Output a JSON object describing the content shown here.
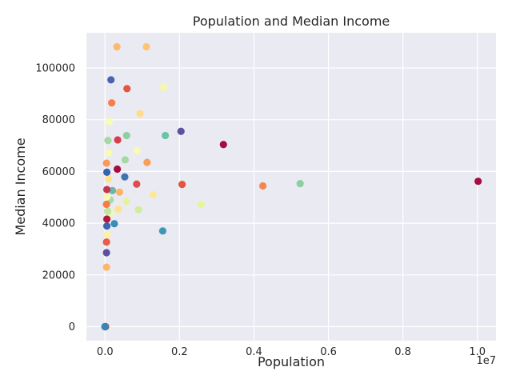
{
  "chart_data": {
    "type": "scatter",
    "title": "Population and Median Income",
    "xlabel": "Population",
    "ylabel": "Median Income",
    "x_offset_text": "1e7",
    "xlim": [
      -500000,
      10500000
    ],
    "ylim": [
      -5400,
      113600
    ],
    "x_ticks": [
      0,
      2000000,
      4000000,
      6000000,
      8000000,
      10000000
    ],
    "x_tick_labels": [
      "0.0",
      "0.2",
      "0.4",
      "0.6",
      "0.8",
      "1.0"
    ],
    "y_ticks": [
      0,
      20000,
      40000,
      60000,
      80000,
      100000
    ],
    "y_tick_labels": [
      "0",
      "20000",
      "40000",
      "60000",
      "80000",
      "100000"
    ],
    "grid": true,
    "background": "#eaeaf2",
    "colormap": "Spectral",
    "points": [
      {
        "x": 10020000,
        "y": 56200,
        "color": "#a50f3f"
      },
      {
        "x": 5240000,
        "y": 55300,
        "color": "#8ecfa1"
      },
      {
        "x": 4240000,
        "y": 54400,
        "color": "#f5874e"
      },
      {
        "x": 3180000,
        "y": 70400,
        "color": "#a50f3f"
      },
      {
        "x": 2580000,
        "y": 47200,
        "color": "#e6f598"
      },
      {
        "x": 2070000,
        "y": 55000,
        "color": "#e3553f"
      },
      {
        "x": 2040000,
        "y": 75500,
        "color": "#5e51a2"
      },
      {
        "x": 1620000,
        "y": 73900,
        "color": "#6cc4a4"
      },
      {
        "x": 1570000,
        "y": 92600,
        "color": "#f3f9ab"
      },
      {
        "x": 1550000,
        "y": 37000,
        "color": "#3f96b7"
      },
      {
        "x": 1290000,
        "y": 51000,
        "color": "#fee797"
      },
      {
        "x": 1130000,
        "y": 63500,
        "color": "#f99e58"
      },
      {
        "x": 1110000,
        "y": 108200,
        "color": "#fec575"
      },
      {
        "x": 940000,
        "y": 82300,
        "color": "#fedd8a"
      },
      {
        "x": 900000,
        "y": 45200,
        "color": "#d1ec9c"
      },
      {
        "x": 860000,
        "y": 68100,
        "color": "#f7fcb2"
      },
      {
        "x": 850000,
        "y": 55100,
        "color": "#de4c4b"
      },
      {
        "x": 590000,
        "y": 92000,
        "color": "#e3553f"
      },
      {
        "x": 580000,
        "y": 73900,
        "color": "#8ecfa1"
      },
      {
        "x": 570000,
        "y": 48400,
        "color": "#e3f49b"
      },
      {
        "x": 540000,
        "y": 64500,
        "color": "#a5d9a4"
      },
      {
        "x": 530000,
        "y": 57900,
        "color": "#3e75b2"
      },
      {
        "x": 390000,
        "y": 52000,
        "color": "#fdb365"
      },
      {
        "x": 360000,
        "y": 45400,
        "color": "#fee290"
      },
      {
        "x": 340000,
        "y": 72200,
        "color": "#d53e4f"
      },
      {
        "x": 330000,
        "y": 60900,
        "color": "#a50f3f"
      },
      {
        "x": 320000,
        "y": 108200,
        "color": "#fdb869"
      },
      {
        "x": 250000,
        "y": 39800,
        "color": "#3a8cb9"
      },
      {
        "x": 200000,
        "y": 52600,
        "color": "#6eb5ad"
      },
      {
        "x": 180000,
        "y": 86500,
        "color": "#f57e4a"
      },
      {
        "x": 160000,
        "y": 95400,
        "color": "#4a63ae"
      },
      {
        "x": 150000,
        "y": 44000,
        "color": "#f0f9a8"
      },
      {
        "x": 140000,
        "y": 49000,
        "color": "#a9dca4"
      },
      {
        "x": 110000,
        "y": 79300,
        "color": "#f8fcb4"
      },
      {
        "x": 100000,
        "y": 67200,
        "color": "#fbf8b0"
      },
      {
        "x": 90000,
        "y": 57100,
        "color": "#fee290"
      },
      {
        "x": 80000,
        "y": 72000,
        "color": "#a5d9a4"
      },
      {
        "x": 70000,
        "y": 44600,
        "color": "#bfe5a0"
      },
      {
        "x": 60000,
        "y": 35500,
        "color": "#fef0a5"
      },
      {
        "x": 50000,
        "y": 59700,
        "color": "#3763ae"
      },
      {
        "x": 50000,
        "y": 53000,
        "color": "#c4384f"
      },
      {
        "x": 50000,
        "y": 50200,
        "color": "#f7fbb2"
      },
      {
        "x": 50000,
        "y": 41600,
        "color": "#b0173f"
      },
      {
        "x": 50000,
        "y": 38900,
        "color": "#3a66ae"
      },
      {
        "x": 40000,
        "y": 63200,
        "color": "#fa9a58"
      },
      {
        "x": 40000,
        "y": 47300,
        "color": "#f67b4a"
      },
      {
        "x": 40000,
        "y": 32700,
        "color": "#e85b4a"
      },
      {
        "x": 40000,
        "y": 28600,
        "color": "#5c4fa0"
      },
      {
        "x": 40000,
        "y": 23000,
        "color": "#fdb768"
      },
      {
        "x": 0,
        "y": 0,
        "color": "#9e0142"
      },
      {
        "x": 10000,
        "y": 0,
        "color": "#5e4fa2"
      },
      {
        "x": 0,
        "y": 0,
        "color": "#3288bd"
      },
      {
        "x": 20000,
        "y": 0,
        "color": "#66c2a5"
      },
      {
        "x": 0,
        "y": 0,
        "color": "#abdda4"
      },
      {
        "x": 10000,
        "y": 0,
        "color": "#e6f598"
      },
      {
        "x": 0,
        "y": 0,
        "color": "#fee08b"
      },
      {
        "x": 20000,
        "y": 0,
        "color": "#fdae61"
      },
      {
        "x": 0,
        "y": 0,
        "color": "#f46d43"
      },
      {
        "x": 10000,
        "y": 0,
        "color": "#d53e4f"
      },
      {
        "x": 0,
        "y": 0,
        "color": "#5e4fa2"
      },
      {
        "x": 0,
        "y": 0,
        "color": "#3288bd"
      }
    ]
  }
}
